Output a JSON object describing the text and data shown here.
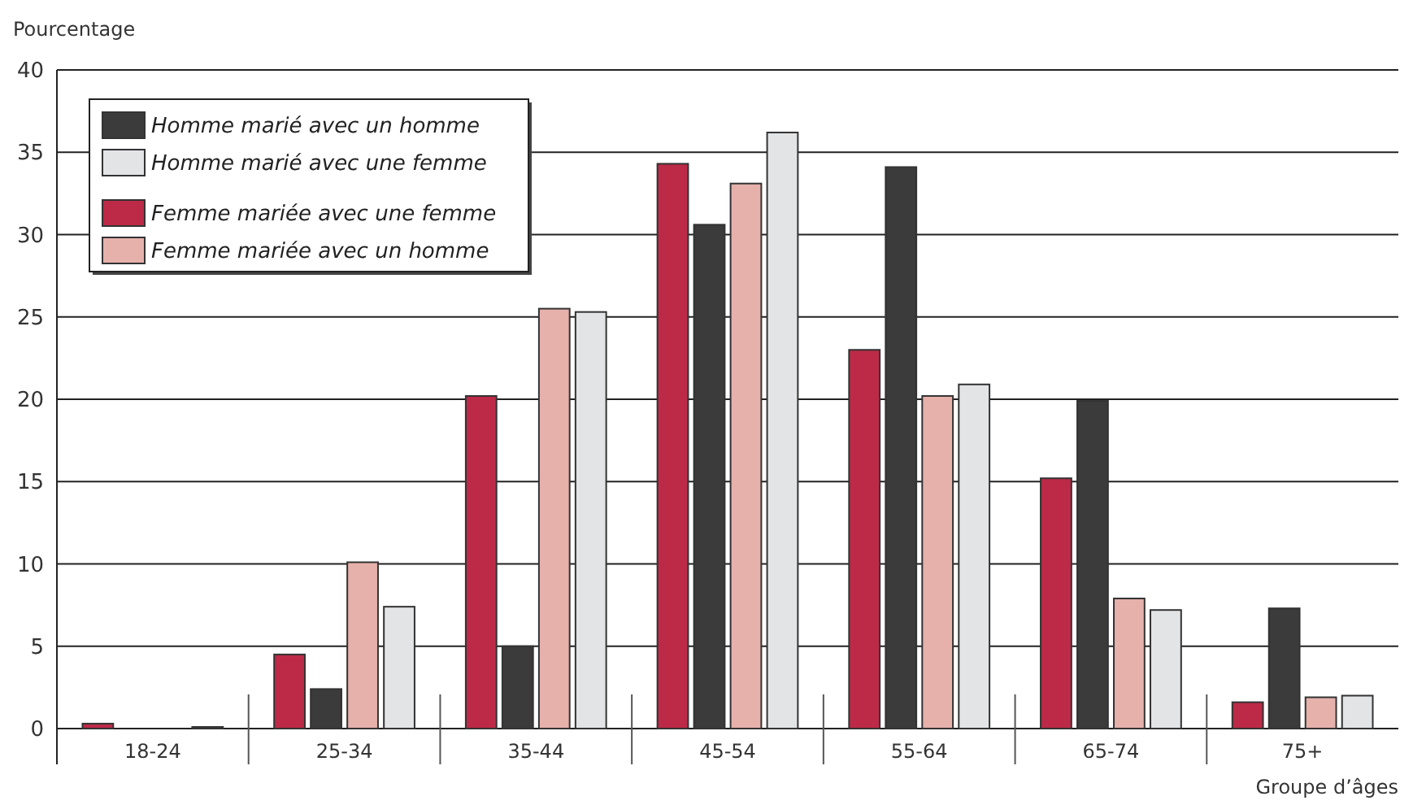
{
  "chart_data": {
    "type": "bar",
    "xlabel": "Groupe d’âges",
    "ylabel": "Pourcentage",
    "categories": [
      "18-24",
      "25-34",
      "35-44",
      "45-54",
      "55-64",
      "65-74",
      "75+"
    ],
    "series": [
      {
        "name": "Femme mariée avec une femme",
        "color": "#bc2a47",
        "values": [
          0.3,
          4.5,
          20.2,
          34.3,
          23.0,
          15.2,
          1.6
        ]
      },
      {
        "name": "Homme marié avec un homme",
        "color": "#3b3b3b",
        "values": [
          null,
          2.4,
          5.0,
          30.6,
          34.1,
          19.9,
          7.3
        ]
      },
      {
        "name": "Femme mariée avec un homme",
        "color": "#e6b1ab",
        "values": [
          0,
          10.1,
          25.5,
          33.1,
          20.2,
          7.9,
          1.9
        ]
      },
      {
        "name": "Homme marié avec une femme",
        "color": "#e3e4e6",
        "values": [
          0.1,
          7.4,
          25.3,
          36.2,
          20.9,
          7.2,
          2.0
        ]
      }
    ],
    "ylim": [
      0,
      40
    ],
    "yticks": [
      0,
      5,
      10,
      15,
      20,
      25,
      30,
      35,
      40
    ],
    "grid": "y",
    "legend": "top left"
  }
}
